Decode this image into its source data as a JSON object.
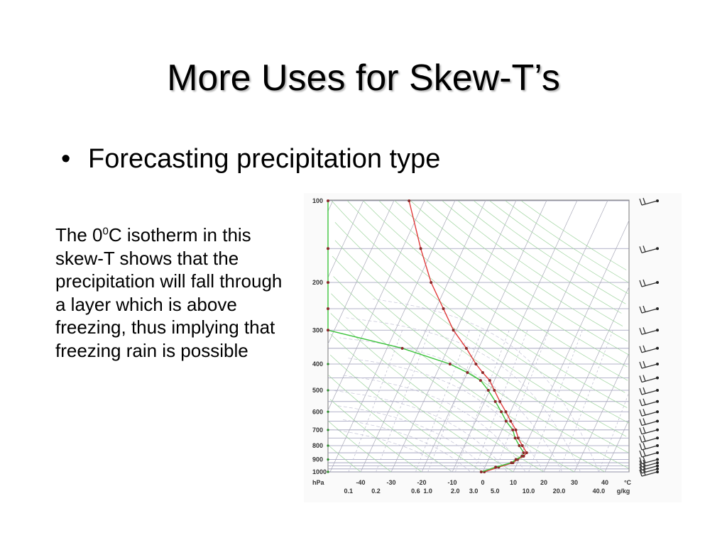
{
  "slide": {
    "title": "More Uses for Skew-T’s",
    "bullet": "Forecasting precipitation type",
    "caption": {
      "part1": "The 0",
      "sup": "0",
      "part2": "C isotherm in this skew-T shows that the precipitation will fall through a layer which is above freezing, thus implying that freezing rain is possible"
    }
  },
  "chart_data": {
    "type": "line",
    "title": "",
    "y_axis": {
      "scale": "log-pressure",
      "ylim": [
        1000,
        100
      ],
      "unit_label": "hPa",
      "ticks": [
        100,
        200,
        300,
        400,
        500,
        600,
        700,
        800,
        900,
        1000
      ],
      "tick_labels": [
        "100",
        "200",
        "300",
        "400",
        "500",
        "600",
        "700",
        "800",
        "900",
        "1000"
      ]
    },
    "x_axis": {
      "unit_label": "°C",
      "xlim": [
        -50,
        50
      ],
      "skew": "isotherms slant up to the right",
      "ticks": [
        -40,
        -30,
        -20,
        -10,
        0,
        10,
        20,
        30,
        40
      ],
      "tick_labels": [
        "-40",
        "-30",
        "-20",
        "-10",
        "0",
        "10",
        "20",
        "30",
        "40"
      ]
    },
    "mixing_ratio_axis": {
      "unit_label": "g/kg",
      "tick_labels": [
        "0.1",
        "0.2",
        "0.6",
        "1.0",
        "2.0",
        "3.0",
        "5.0",
        "10.0",
        "20.0",
        "40.0"
      ],
      "x_positions_c": [
        -44,
        -35,
        -22,
        -18,
        -9,
        -3,
        4,
        15,
        25,
        38
      ]
    },
    "grid": true,
    "series": [
      {
        "role": "temperature",
        "color": "#e03a3a",
        "points": [
          {
            "p": 1000,
            "t": 0.5
          },
          {
            "p": 960,
            "t": 4.5
          },
          {
            "p": 925,
            "t": 8.5
          },
          {
            "p": 900,
            "t": 9.5
          },
          {
            "p": 875,
            "t": 11.0
          },
          {
            "p": 850,
            "t": 11.5
          },
          {
            "p": 800,
            "t": 9.0
          },
          {
            "p": 750,
            "t": 6.5
          },
          {
            "p": 700,
            "t": 4.5
          },
          {
            "p": 650,
            "t": 1.5
          },
          {
            "p": 600,
            "t": -1.5
          },
          {
            "p": 550,
            "t": -5.0
          },
          {
            "p": 500,
            "t": -8.5
          },
          {
            "p": 460,
            "t": -11.5
          },
          {
            "p": 430,
            "t": -15.0
          },
          {
            "p": 400,
            "t": -18.5
          },
          {
            "p": 350,
            "t": -24.0
          },
          {
            "p": 300,
            "t": -31.0
          },
          {
            "p": 250,
            "t": -37.5
          },
          {
            "p": 200,
            "t": -45.5
          },
          {
            "p": 150,
            "t": -54.0
          },
          {
            "p": 100,
            "t": -65.0
          }
        ]
      },
      {
        "role": "dewpoint",
        "color": "#3ec43e",
        "points": [
          {
            "p": 1000,
            "t": -0.5
          },
          {
            "p": 960,
            "t": 3.5
          },
          {
            "p": 925,
            "t": 8.0
          },
          {
            "p": 900,
            "t": 9.0
          },
          {
            "p": 875,
            "t": 10.5
          },
          {
            "p": 850,
            "t": 10.5
          },
          {
            "p": 800,
            "t": 8.0
          },
          {
            "p": 750,
            "t": 5.5
          },
          {
            "p": 700,
            "t": 3.5
          },
          {
            "p": 650,
            "t": 0.0
          },
          {
            "p": 600,
            "t": -3.0
          },
          {
            "p": 550,
            "t": -6.5
          },
          {
            "p": 500,
            "t": -10.5
          },
          {
            "p": 460,
            "t": -14.5
          },
          {
            "p": 430,
            "t": -20.0
          },
          {
            "p": 400,
            "t": -27.0
          },
          {
            "p": 350,
            "t": -45.0
          },
          {
            "p": 300,
            "t": -73.0
          },
          {
            "p": 250,
            "t": -84.0
          },
          {
            "p": 200,
            "t": -93.0
          },
          {
            "p": 150,
            "t": -103.0
          },
          {
            "p": 100,
            "t": -117.0
          }
        ]
      }
    ],
    "wind_barbs": {
      "pressures": [
        100,
        150,
        200,
        250,
        300,
        350,
        400,
        450,
        500,
        550,
        600,
        650,
        700,
        750,
        800,
        850,
        900,
        925,
        950,
        975,
        1000
      ],
      "icon": "wind-barb-icon"
    }
  }
}
